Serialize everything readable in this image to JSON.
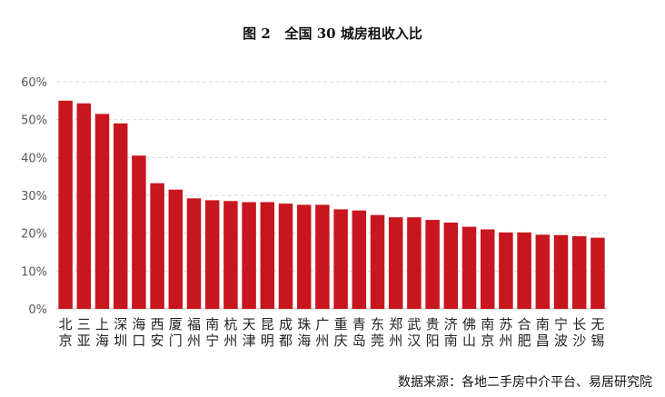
{
  "chart_data": {
    "type": "bar",
    "title_fig": "图 2",
    "title": "全国 30 城房租收入比",
    "categories": [
      "北京",
      "三亚",
      "上海",
      "深圳",
      "海口",
      "西安",
      "厦门",
      "福州",
      "南宁",
      "杭州",
      "天津",
      "昆明",
      "成都",
      "珠海",
      "广州",
      "重庆",
      "青岛",
      "东莞",
      "郑州",
      "武汉",
      "贵阳",
      "济南",
      "佛山",
      "南京",
      "苏州",
      "合肥",
      "南昌",
      "宁波",
      "长沙",
      "无锡"
    ],
    "values": [
      55,
      54.3,
      51.5,
      49,
      40.5,
      33.2,
      31.5,
      29.2,
      28.7,
      28.5,
      28.2,
      28.2,
      27.8,
      27.5,
      27.5,
      26.3,
      26,
      24.8,
      24.2,
      24.2,
      23.5,
      22.8,
      21.7,
      21,
      20.2,
      20.2,
      19.6,
      19.5,
      19.2,
      18.8
    ],
    "ylim": [
      0,
      60
    ],
    "yticks": [
      "0%",
      "10%",
      "20%",
      "30%",
      "40%",
      "50%",
      "60%"
    ],
    "ytick_values": [
      0,
      10,
      20,
      30,
      40,
      50,
      60
    ],
    "xlabel": "",
    "ylabel": "",
    "bar_color": "#C8161E",
    "grid": true,
    "source": "数据来源：各地二手房中介平台、易居研究院"
  }
}
